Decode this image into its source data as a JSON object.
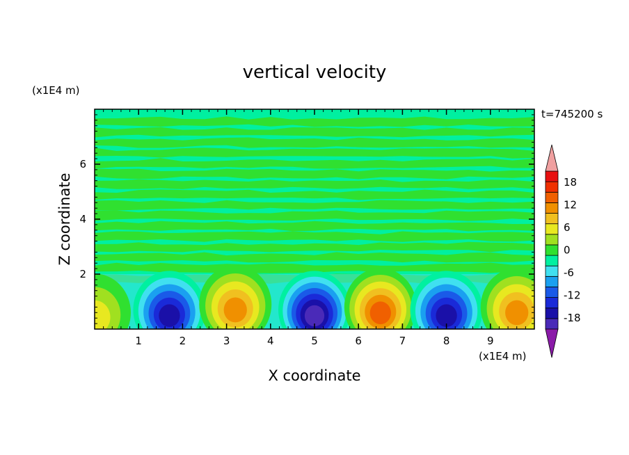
{
  "chart_data": {
    "type": "heatmap",
    "title": "vertical velocity",
    "xlabel": "X coordinate",
    "ylabel": "Z coordinate",
    "x_unit_label": "(x1E4 m)",
    "y_unit_label": "(x1E4 m)",
    "time_label": "t=745200 s",
    "xlim": [
      0,
      10
    ],
    "ylim": [
      0,
      8
    ],
    "x_ticks": [
      "1",
      "2",
      "3",
      "4",
      "5",
      "6",
      "7",
      "8",
      "9"
    ],
    "y_ticks": [
      "2",
      "4",
      "6"
    ],
    "colorbar": {
      "labels": [
        "18",
        "12",
        "6",
        "0",
        "-6",
        "-12",
        "-18"
      ],
      "levels": [
        -21,
        -18,
        -15,
        -12,
        -9,
        -6,
        -3,
        0,
        3,
        6,
        9,
        12,
        15,
        18,
        21
      ],
      "colors": [
        "#8a1aa8",
        "#4a2ab8",
        "#1a10a8",
        "#1a2ad8",
        "#1a5ae8",
        "#1aa0f0",
        "#40e0f0",
        "#00f0a0",
        "#30e030",
        "#a0e020",
        "#e8e820",
        "#f0c020",
        "#f09000",
        "#f06000",
        "#f03000",
        "#e81010",
        "#f0a0a0"
      ]
    },
    "cells": [
      {
        "x": 0.0,
        "z": 0.6,
        "w": 4
      },
      {
        "x": 1.7,
        "z": 0.7,
        "w": -14
      },
      {
        "x": 3.2,
        "z": 0.9,
        "w": 12
      },
      {
        "x": 5.0,
        "z": 0.7,
        "w": -16
      },
      {
        "x": 6.5,
        "z": 0.8,
        "w": 13
      },
      {
        "x": 8.0,
        "z": 0.7,
        "w": -15
      },
      {
        "x": 9.6,
        "z": 0.8,
        "w": 11
      }
    ]
  }
}
